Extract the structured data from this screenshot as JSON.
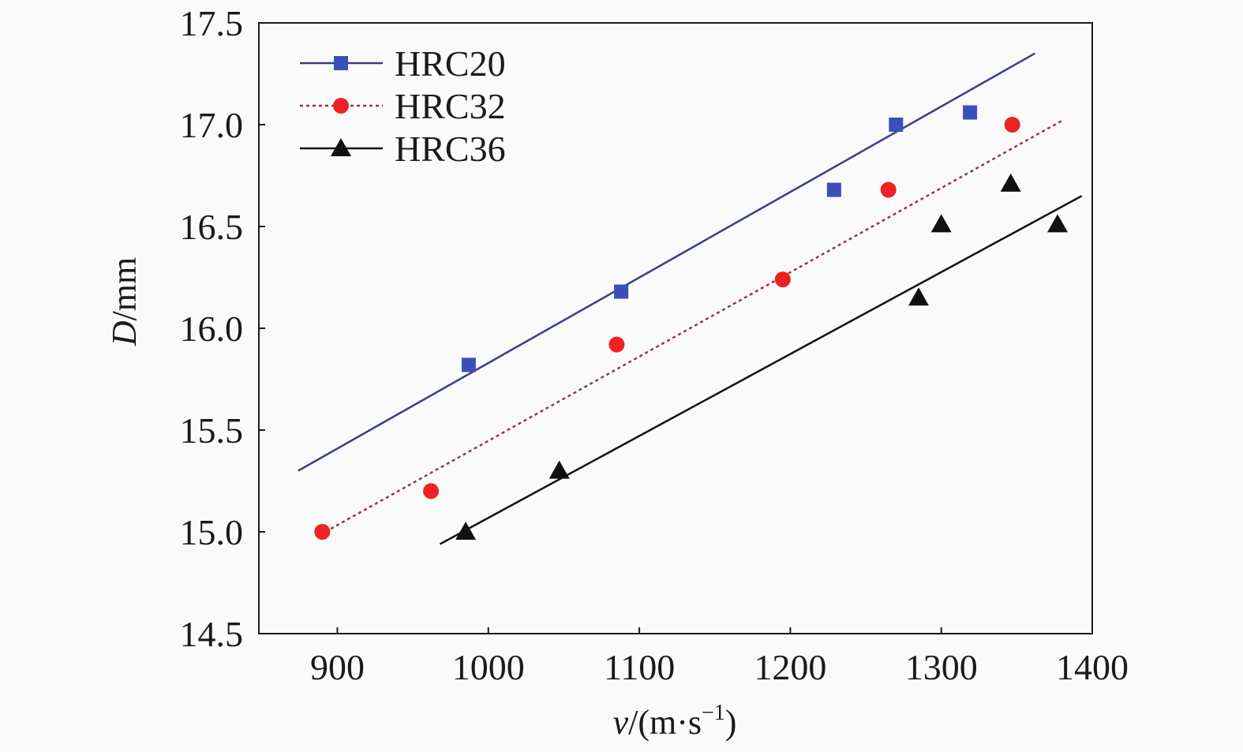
{
  "chart_data": {
    "type": "scatter",
    "title": "",
    "xlabel": {
      "var": "v",
      "unit": "/(m·s",
      "sup": "−1",
      "close": ")"
    },
    "ylabel": {
      "var": "D",
      "unit": "/mm"
    },
    "xlim": [
      848,
      1400
    ],
    "ylim": [
      14.5,
      17.5
    ],
    "xticks": [
      "900",
      "1000",
      "1100",
      "1200",
      "1300",
      "1400"
    ],
    "yticks": [
      "14.5",
      "15.0",
      "15.5",
      "16.0",
      "16.5",
      "17.0",
      "17.5"
    ],
    "grid": false,
    "legend_position": "top-left",
    "series": [
      {
        "name": "HRC20",
        "marker": "square",
        "color": "#3a4fb8",
        "line_color": "#3b3b8a",
        "line_style": "solid",
        "x": [
          987,
          1088,
          1229,
          1270,
          1319
        ],
        "y": [
          15.82,
          16.18,
          16.68,
          17.0,
          17.06
        ],
        "fit": {
          "x": [
            874,
            1362
          ],
          "y": [
            15.3,
            17.35
          ]
        }
      },
      {
        "name": "HRC32",
        "marker": "circle",
        "color": "#ee2222",
        "line_color": "#8a3a4a",
        "line_style": "dotted",
        "x": [
          890,
          962,
          1085,
          1195,
          1265,
          1347
        ],
        "y": [
          15.0,
          15.2,
          15.92,
          16.24,
          16.68,
          17.0
        ],
        "fit": {
          "x": [
            892,
            1380
          ],
          "y": [
            15.0,
            17.02
          ]
        }
      },
      {
        "name": "HRC36",
        "marker": "triangle",
        "color": "#111111",
        "line_color": "#111111",
        "line_style": "solid",
        "x": [
          985,
          1047,
          1285,
          1300,
          1346,
          1377
        ],
        "y": [
          15.0,
          15.3,
          16.15,
          16.51,
          16.71,
          16.51
        ],
        "fit": {
          "x": [
            968,
            1393
          ],
          "y": [
            14.94,
            16.65
          ]
        }
      }
    ]
  }
}
